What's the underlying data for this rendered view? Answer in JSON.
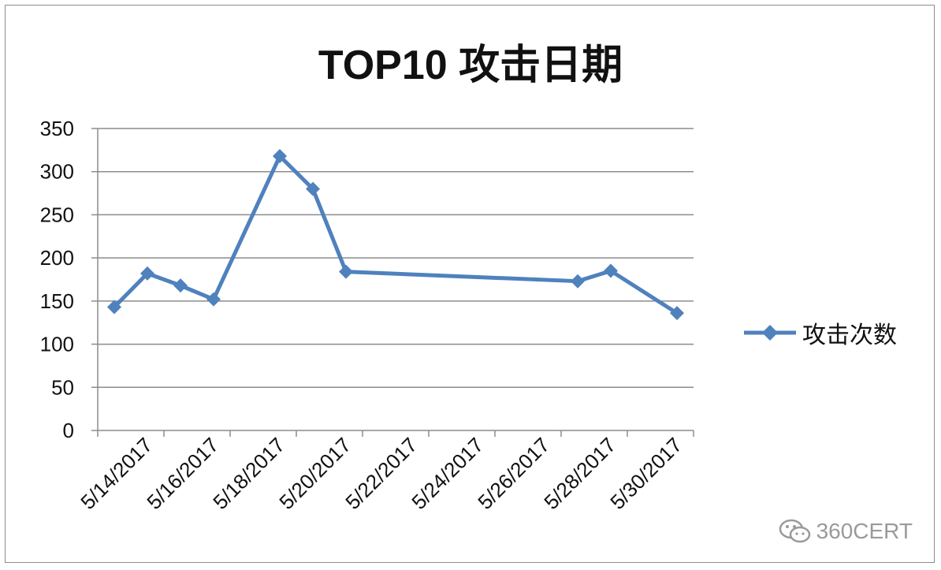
{
  "chart_data": {
    "type": "line",
    "title": "TOP10 攻击日期",
    "xlabel": "",
    "ylabel": "",
    "x_tick_labels": [
      "5/14/2017",
      "5/16/2017",
      "5/18/2017",
      "5/20/2017",
      "5/22/2017",
      "5/24/2017",
      "5/26/2017",
      "5/28/2017",
      "5/30/2017"
    ],
    "ylim": [
      0,
      350
    ],
    "y_ticks": [
      0,
      50,
      100,
      150,
      200,
      250,
      300,
      350
    ],
    "grid": "horizontal",
    "legend_position": "right",
    "series": [
      {
        "name": "攻击次数",
        "color": "#4F81BD",
        "marker": "diamond",
        "points": [
          {
            "x": "2017-05-13",
            "y": 143
          },
          {
            "x": "2017-05-14",
            "y": 182
          },
          {
            "x": "2017-05-15",
            "y": 168
          },
          {
            "x": "2017-05-16",
            "y": 152
          },
          {
            "x": "2017-05-18",
            "y": 318
          },
          {
            "x": "2017-05-19",
            "y": 280
          },
          {
            "x": "2017-05-20",
            "y": 184
          },
          {
            "x": "2017-05-27",
            "y": 173
          },
          {
            "x": "2017-05-28",
            "y": 185
          },
          {
            "x": "2017-05-30",
            "y": 136
          }
        ]
      }
    ]
  },
  "watermark": {
    "icon": "wechat-icon",
    "text": "360CERT"
  }
}
